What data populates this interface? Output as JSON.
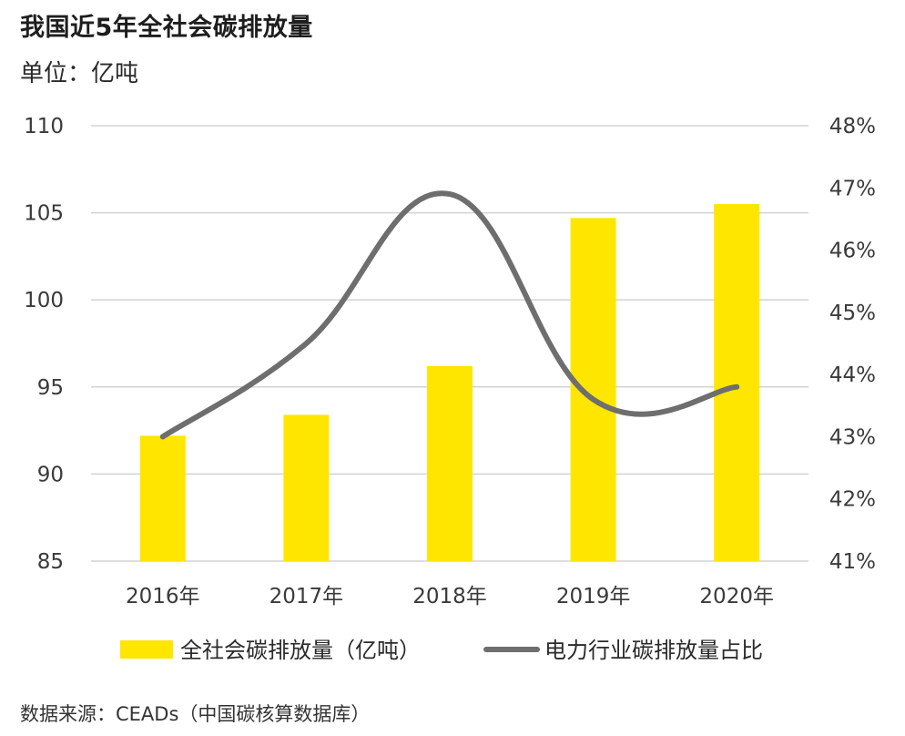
{
  "header": {
    "title": "我国近5年全社会碳排放量",
    "unit": "单位：亿吨"
  },
  "footer": {
    "source": "数据来源：CEADs（中国碳核算数据库）"
  },
  "colors": {
    "bar": "#FFE600",
    "line": "#6E6E6E",
    "grid": "#D3D3D3"
  },
  "chart_data": {
    "type": "bar",
    "categories": [
      "2016年",
      "2017年",
      "2018年",
      "2019年",
      "2020年"
    ],
    "ylim": [
      85,
      110
    ],
    "y_ticks": [
      "110",
      "105",
      "100",
      "95",
      "90",
      "85"
    ],
    "y2lim": [
      41,
      48
    ],
    "y2_ticks": [
      "48%",
      "47%",
      "46%",
      "45%",
      "44%",
      "43%",
      "42%",
      "41%"
    ],
    "grid": true,
    "legend_position": "bottom",
    "series": [
      {
        "name": "全社会碳排放量（亿吨）",
        "type": "bar",
        "axis": "left",
        "values": [
          92.2,
          93.4,
          96.2,
          104.7,
          105.5
        ]
      },
      {
        "name": "电力行业碳排放量占比",
        "type": "line",
        "axis": "right",
        "smooth": true,
        "values": [
          43.0,
          44.5,
          46.9,
          43.6,
          43.8
        ]
      }
    ]
  }
}
